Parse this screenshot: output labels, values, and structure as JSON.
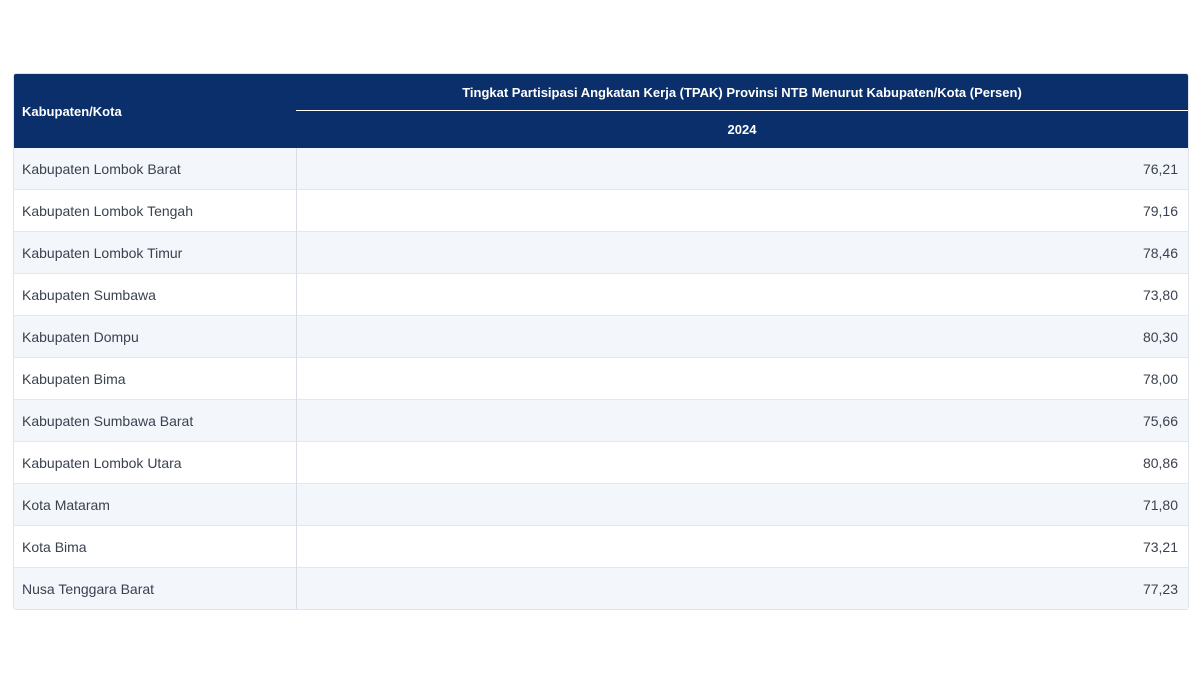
{
  "table": {
    "header": {
      "region_label": "Kabupaten/Kota",
      "title": "Tingkat Partisipasi Angkatan Kerja (TPAK) Provinsi NTB Menurut Kabupaten/Kota (Persen)",
      "year": "2024"
    },
    "rows": [
      {
        "name": "Kabupaten Lombok Barat",
        "value": "76,21"
      },
      {
        "name": "Kabupaten Lombok Tengah",
        "value": "79,16"
      },
      {
        "name": "Kabupaten Lombok Timur",
        "value": "78,46"
      },
      {
        "name": "Kabupaten Sumbawa",
        "value": "73,80"
      },
      {
        "name": "Kabupaten Dompu",
        "value": "80,30"
      },
      {
        "name": "Kabupaten Bima",
        "value": "78,00"
      },
      {
        "name": "Kabupaten Sumbawa Barat",
        "value": "75,66"
      },
      {
        "name": "Kabupaten Lombok Utara",
        "value": "80,86"
      },
      {
        "name": "Kota Mataram",
        "value": "71,80"
      },
      {
        "name": "Kota Bima",
        "value": "73,21"
      },
      {
        "name": "Nusa Tenggara Barat",
        "value": "77,23"
      }
    ]
  }
}
